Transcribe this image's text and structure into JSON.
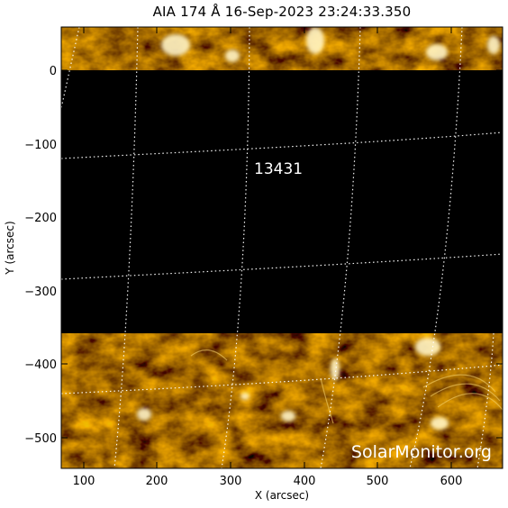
{
  "title": "AIA 174 Å 16-Sep-2023 23:24:33.350",
  "xlabel": "X (arcsec)",
  "ylabel": "Y (arcsec)",
  "x_ticks": [
    "100",
    "200",
    "300",
    "400",
    "500",
    "600"
  ],
  "y_ticks": [
    "0",
    "−100",
    "−200",
    "−300",
    "−400",
    "−500"
  ],
  "region_label": "13431",
  "watermark": "SolarMonitor.org",
  "colors": {
    "solar_dark": "#2e1f00",
    "solar_mid": "#8a6200",
    "solar_bright": "#f6d77a",
    "grid": "#ffffff",
    "no_data": "#000000"
  }
}
